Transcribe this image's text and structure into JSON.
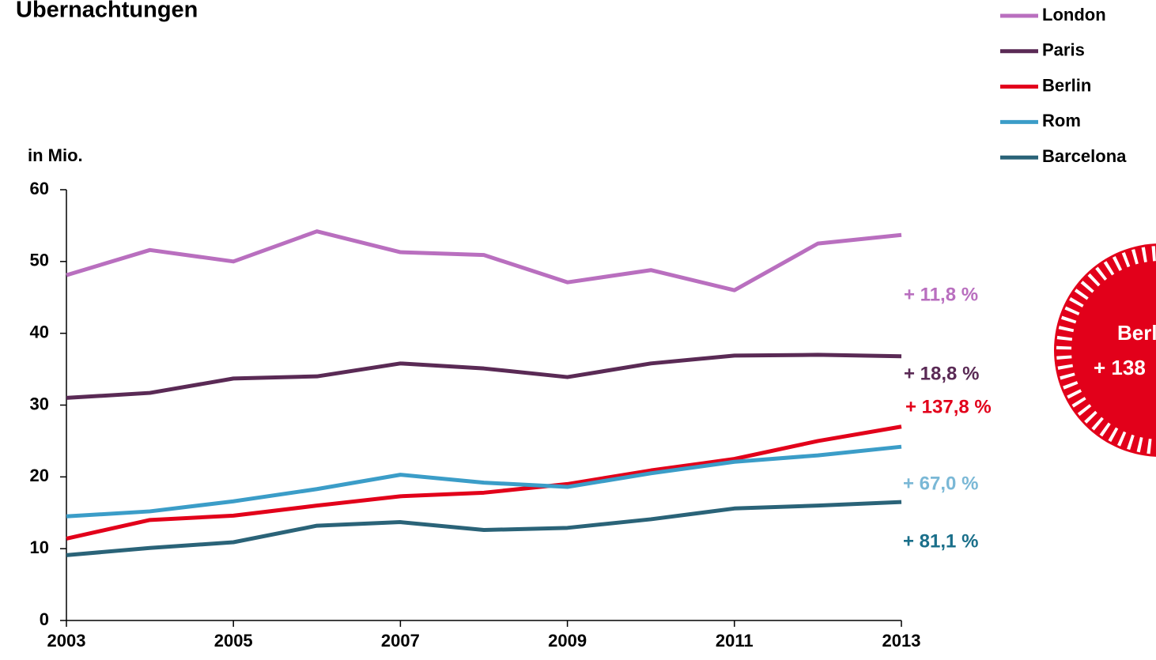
{
  "chart_data": {
    "type": "line",
    "title": "Übernachtungen",
    "y_label": "in Mio.",
    "x": [
      2003,
      2004,
      2005,
      2006,
      2007,
      2008,
      2009,
      2010,
      2011,
      2012,
      2013
    ],
    "xlim": [
      2003,
      2013
    ],
    "xticks": [
      2003,
      2005,
      2007,
      2009,
      2011,
      2013
    ],
    "ylim": [
      0,
      60
    ],
    "yticks": [
      0,
      10,
      20,
      30,
      40,
      50,
      60
    ],
    "series": [
      {
        "name": "London",
        "color": "#b96fbf",
        "values": [
          48.1,
          51.6,
          50.0,
          54.2,
          51.3,
          50.9,
          47.1,
          48.8,
          46.0,
          52.5,
          53.7
        ]
      },
      {
        "name": "Paris",
        "color": "#5a2a55",
        "values": [
          31.0,
          31.7,
          33.7,
          34.0,
          35.8,
          35.1,
          33.9,
          35.8,
          36.9,
          37.0,
          36.8
        ]
      },
      {
        "name": "Berlin",
        "color": "#e2001a",
        "values": [
          11.4,
          14.0,
          14.6,
          16.0,
          17.3,
          17.8,
          19.0,
          20.9,
          22.5,
          25.0,
          27.0
        ]
      },
      {
        "name": "Rom",
        "color": "#3b9dc8",
        "values": [
          14.5,
          15.2,
          16.6,
          18.3,
          20.3,
          19.2,
          18.6,
          20.5,
          22.1,
          23.0,
          24.2
        ]
      },
      {
        "name": "Barcelona",
        "color": "#2a6378",
        "values": [
          9.1,
          10.1,
          10.9,
          13.2,
          13.7,
          12.6,
          12.9,
          14.1,
          15.6,
          16.0,
          16.5
        ]
      }
    ],
    "annotations": [
      {
        "text": "+ 11,8 %",
        "color": "#b96fbf"
      },
      {
        "text": "+ 18,8 %",
        "color": "#5a2a55"
      },
      {
        "text": "+ 137,8 %",
        "color": "#e2001a"
      },
      {
        "text": "+ 67,0 %",
        "color": "#7ab8d6"
      },
      {
        "text": "+ 81,1 %",
        "color": "#1a6f8a"
      }
    ],
    "badge": {
      "lines": [
        "Berl",
        "+ 138"
      ],
      "color": "#e2001a"
    }
  }
}
